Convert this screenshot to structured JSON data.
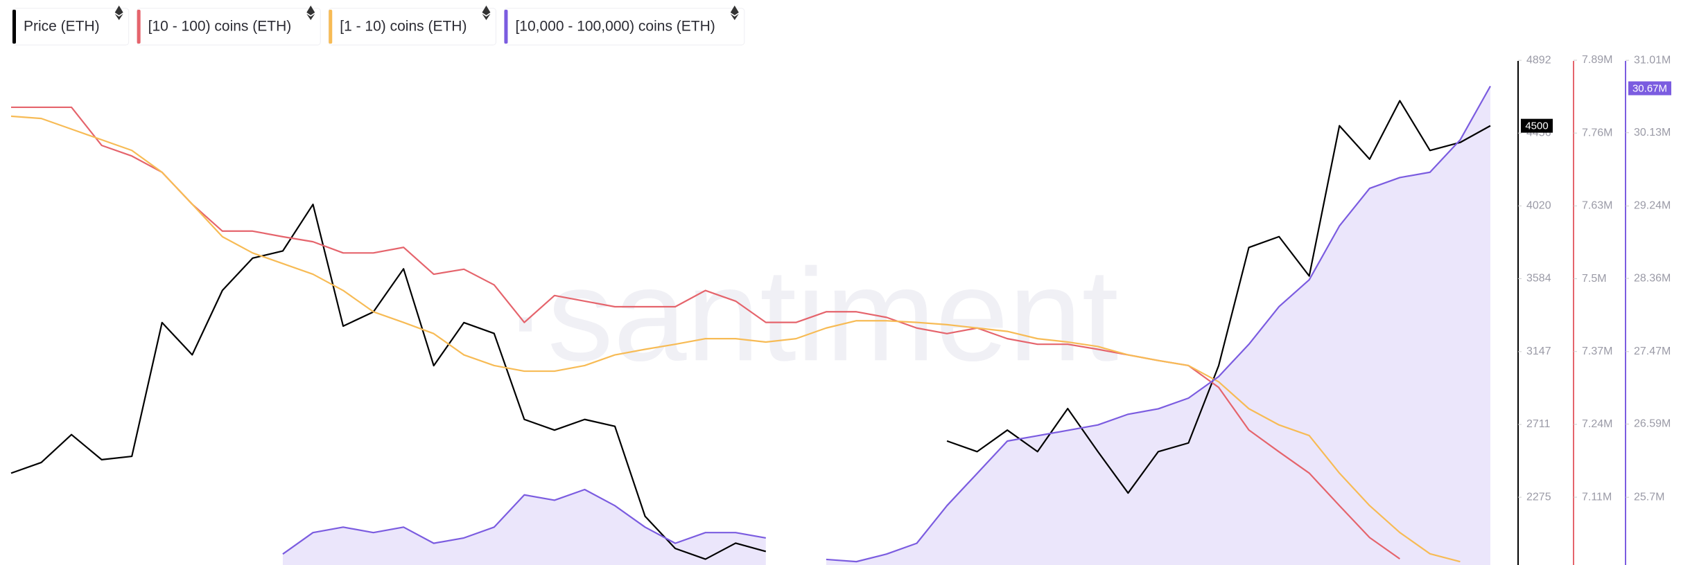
{
  "chart_data": {
    "type": "line",
    "watermark": "·santiment",
    "ylim": [
      1869,
      4963
    ],
    "yticks": [
      2275,
      2711,
      3147,
      3584,
      4020,
      4456,
      4892
    ],
    "y2lim": [
      6989000,
      7911000
    ],
    "y2ticks": [
      {
        "value": 7110000,
        "label": "7.11M"
      },
      {
        "value": 7240000,
        "label": "7.24M"
      },
      {
        "value": 7370000,
        "label": "7.37M"
      },
      {
        "value": 7500000,
        "label": "7.5M"
      },
      {
        "value": 7630000,
        "label": "7.63M"
      },
      {
        "value": 7760000,
        "label": "7.76M"
      },
      {
        "value": 7890000,
        "label": "7.89M"
      }
    ],
    "y3lim": [
      24877000,
      31154000
    ],
    "y3ticks": [
      {
        "value": 25700000,
        "label": "25.7M"
      },
      {
        "value": 26590000,
        "label": "26.59M"
      },
      {
        "value": 27470000,
        "label": "27.47M"
      },
      {
        "value": 28360000,
        "label": "28.36M"
      },
      {
        "value": 29240000,
        "label": "29.24M"
      },
      {
        "value": 30130000,
        "label": "30.13M"
      },
      {
        "value": 31010000,
        "label": "31.01M"
      }
    ],
    "series": [
      {
        "name": "Price (ETH)",
        "color": "#000000",
        "axis": "y",
        "marker": 4500,
        "values": [
          2419,
          2483,
          2650,
          2500,
          2520,
          3321,
          3128,
          3514,
          3707,
          3750,
          4029,
          3300,
          3385,
          3643,
          3063,
          3321,
          3256,
          2741,
          2677,
          2741,
          2700,
          2161,
          1968,
          1904,
          2000,
          1950,
          null,
          null,
          null,
          null,
          null,
          2612,
          2548,
          2677,
          2548,
          2806,
          2548,
          2300,
          2548,
          2600,
          3063,
          3771,
          3836,
          3600,
          4500,
          4300,
          4650,
          4352,
          4400,
          4500
        ]
      },
      {
        "name": "[10 - 100) coins (ETH)",
        "color": "#e5646c",
        "axis": "y2",
        "values": [
          7806000,
          7806000,
          7806000,
          7738000,
          7719000,
          7690000,
          7633000,
          7585000,
          7585000,
          7575000,
          7566000,
          7546000,
          7546000,
          7556000,
          7508000,
          7517000,
          7489000,
          7422000,
          7470000,
          7460000,
          7450000,
          7450000,
          7450000,
          7479000,
          7460000,
          7422000,
          7422000,
          7441000,
          7441000,
          7431000,
          7412000,
          7402000,
          7412000,
          7393000,
          7383000,
          7383000,
          7374000,
          7364000,
          7354000,
          7345000,
          7306000,
          7230000,
          7191000,
          7153000,
          7095000,
          7038000,
          7000000,
          null,
          null,
          null
        ]
      },
      {
        "name": "[1 - 10) coins (ETH)",
        "color": "#f7bb55",
        "axis": "y2",
        "values": [
          7790000,
          7786000,
          7767000,
          7748000,
          7729000,
          7690000,
          7633000,
          7575000,
          7546000,
          7527000,
          7508000,
          7479000,
          7441000,
          7422000,
          7402000,
          7364000,
          7345000,
          7335000,
          7335000,
          7345000,
          7364000,
          7374000,
          7383000,
          7393000,
          7393000,
          7387000,
          7393000,
          7412000,
          7425000,
          7425000,
          7422000,
          7418000,
          7412000,
          7406000,
          7393000,
          7387000,
          7379000,
          7364000,
          7354000,
          7345000,
          7316000,
          7268000,
          7239000,
          7220000,
          7153000,
          7095000,
          7047000,
          7009000,
          6995000,
          null
        ]
      },
      {
        "name": "[10,000 - 100,000) coins (ETH)",
        "color": "#7b5ce0",
        "axis": "y3",
        "fill": "#ebe6fb",
        "marker": {
          "value": 30670000,
          "label": "30.67M"
        },
        "values": [
          null,
          null,
          null,
          null,
          null,
          null,
          null,
          null,
          null,
          25010000,
          25271000,
          25337000,
          25271000,
          25337000,
          25141000,
          25206000,
          25337000,
          25729000,
          25664000,
          25794000,
          25598000,
          25337000,
          25141000,
          25271000,
          25271000,
          25206000,
          null,
          24945000,
          24918000,
          25010000,
          25141000,
          25598000,
          25990000,
          26383000,
          26448000,
          26513000,
          26579000,
          26709000,
          26775000,
          26905000,
          27167000,
          27559000,
          28017000,
          28343000,
          28997000,
          29454000,
          29585000,
          29650000,
          30043000,
          30696000
        ]
      }
    ]
  }
}
